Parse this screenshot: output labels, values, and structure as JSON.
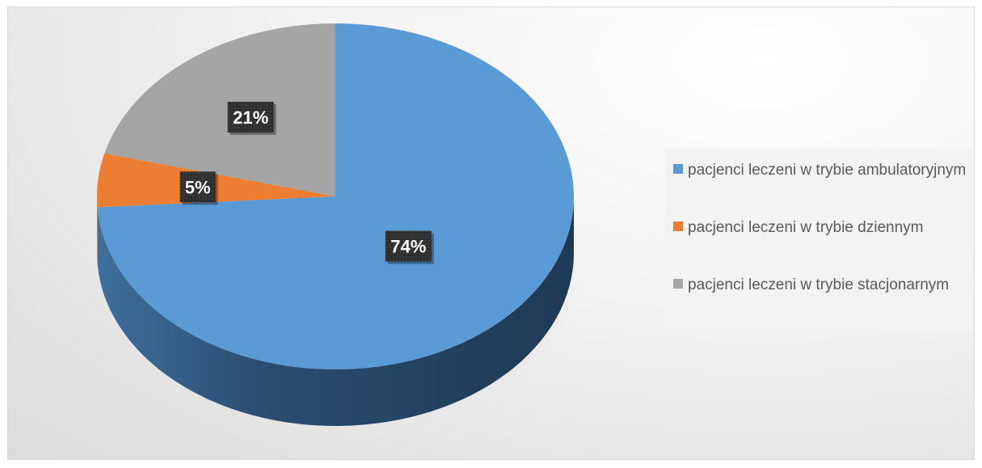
{
  "chart_data": {
    "type": "pie",
    "title": "",
    "categories": [
      "pacjenci leczeni w trybie ambulatoryjnym",
      "pacjenci leczeni w trybie dziennym",
      "pacjenci leczeni w trybie stacjonarnym"
    ],
    "values": [
      74,
      5,
      21
    ],
    "data_labels": [
      "74%",
      "5%",
      "21%"
    ],
    "colors": [
      "#5b9bd5",
      "#ed7d31",
      "#a5a5a5"
    ],
    "style": "3d",
    "legend": "right"
  }
}
